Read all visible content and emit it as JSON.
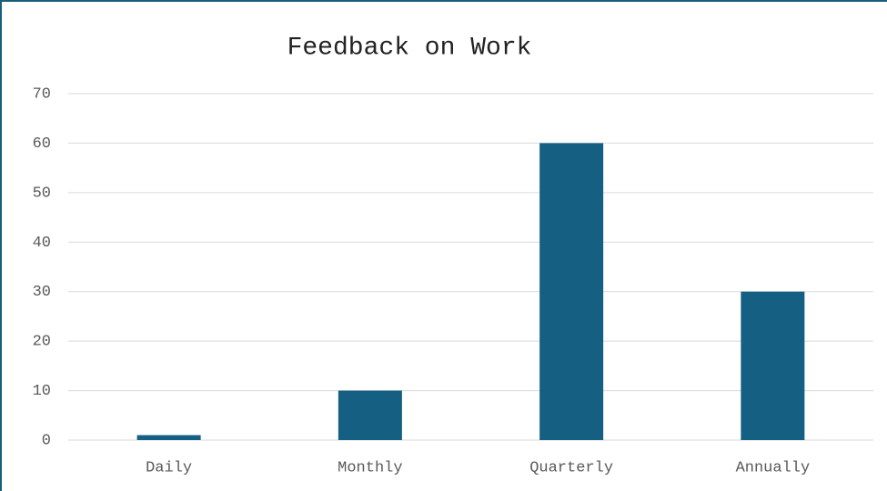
{
  "chart_data": {
    "type": "bar",
    "title": "Feedback on Work",
    "categories": [
      "Daily",
      "Monthly",
      "Quarterly",
      "Annually"
    ],
    "values": [
      1,
      10,
      60,
      30
    ],
    "color": "#156082",
    "ylim": [
      0,
      70
    ],
    "yticks": [
      0,
      10,
      20,
      30,
      40,
      50,
      60,
      70
    ],
    "grid": true
  }
}
